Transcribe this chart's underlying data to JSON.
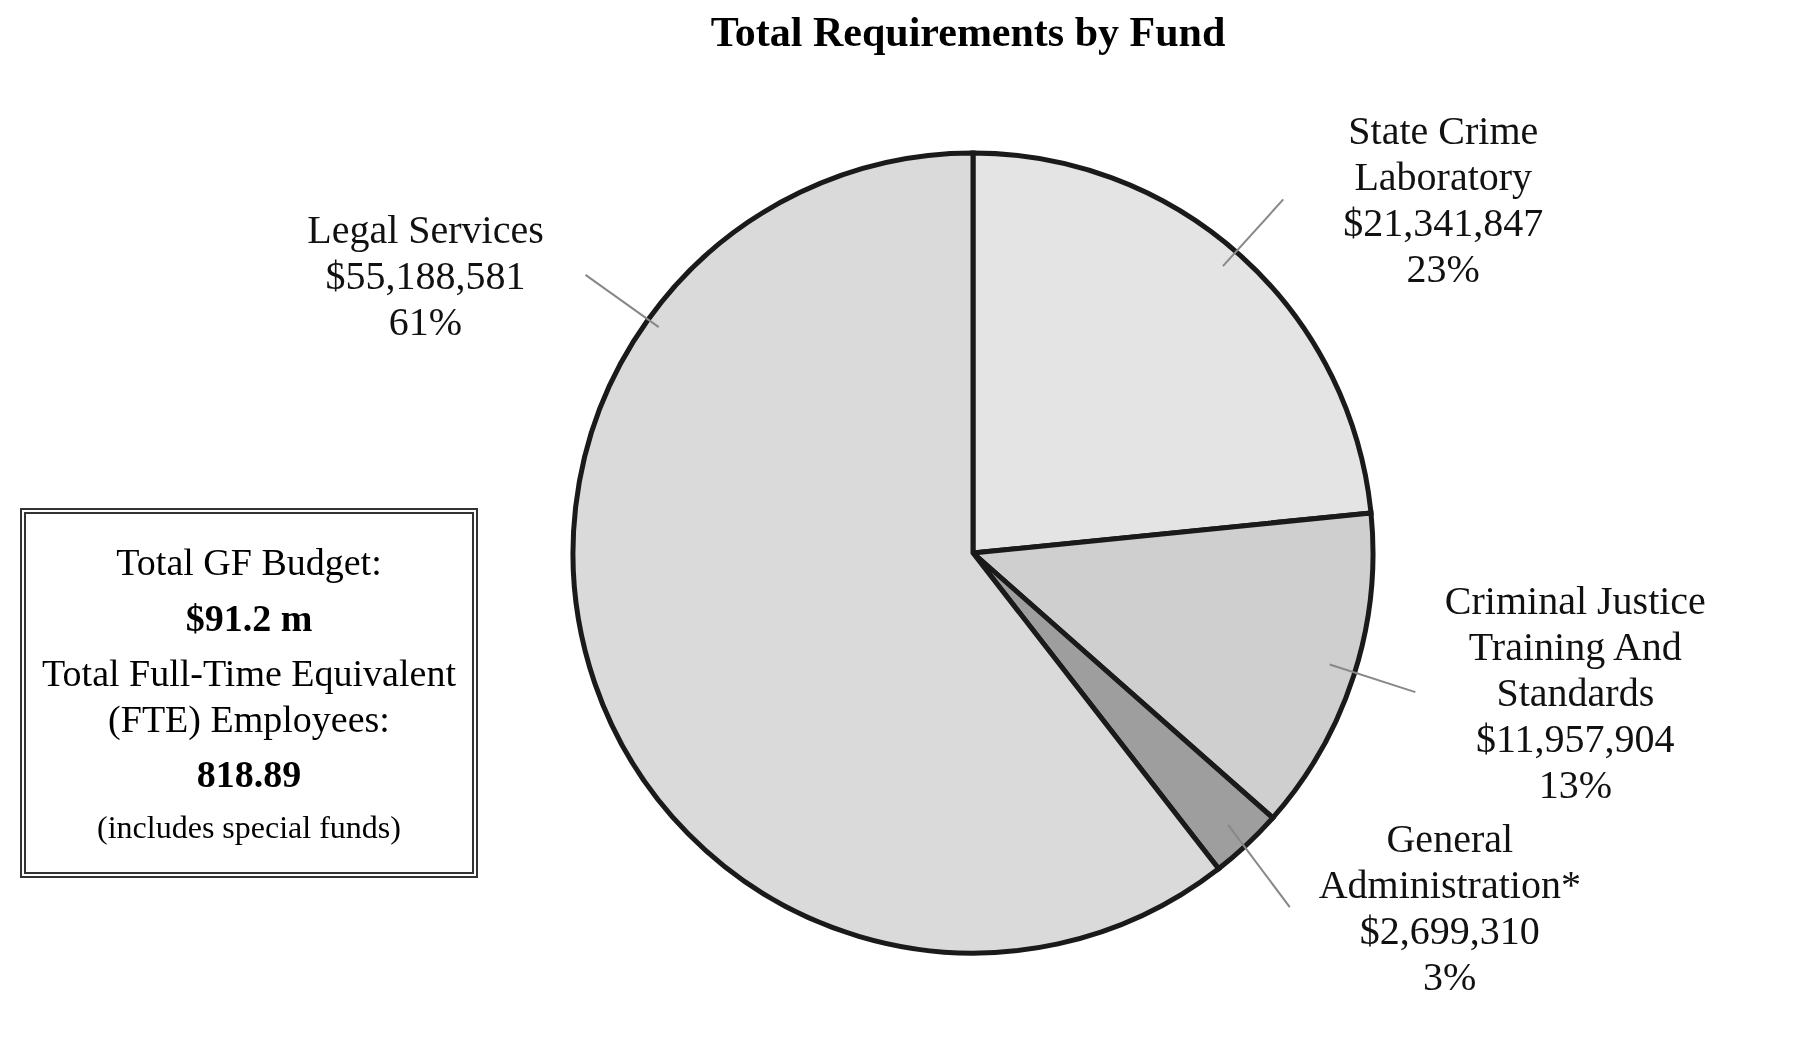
{
  "chart_data": {
    "type": "pie",
    "title": "Total Requirements by Fund",
    "categories": [
      "State Crime Laboratory",
      "Criminal Justice Training And Standards",
      "General Administration*",
      "Legal Services"
    ],
    "values": [
      21341847,
      11957904,
      2699310,
      55188581
    ],
    "colors": [
      "#e4e4e4",
      "#cfcfcf",
      "#9e9e9e",
      "#dadada"
    ],
    "value_labels": [
      "$21,341,847\n23%",
      "$11,957,904\n13%",
      "$2,699,310\n3%",
      "$55,188,581\n61%"
    ],
    "annotations": [
      "Total GF Budget:",
      "$91.2 m",
      "Total Full-Time Equivalent (FTE) Employees:",
      "818.89",
      "(includes special funds)"
    ],
    "legend": false
  }
}
